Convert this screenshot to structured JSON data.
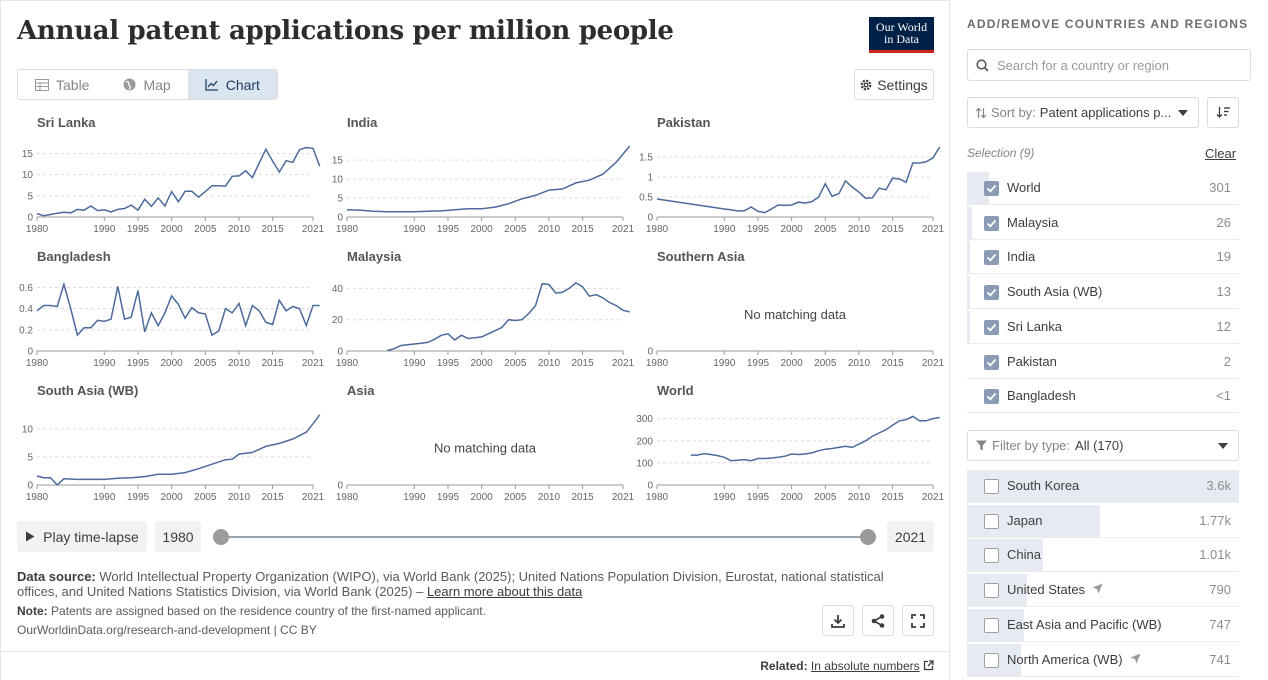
{
  "header": {
    "title": "Annual patent applications per million people",
    "logo_line1": "Our World",
    "logo_line2": "in Data"
  },
  "tabs": [
    {
      "label": "Table",
      "icon": "table-icon"
    },
    {
      "label": "Map",
      "icon": "globe-icon"
    },
    {
      "label": "Chart",
      "icon": "line-chart-icon",
      "active": true
    }
  ],
  "settings_label": "Settings",
  "chart_data": {
    "type": "line",
    "layout": "small-multiples",
    "line_color": "#4c6a9c",
    "x_ticks": [
      "1980",
      "1990",
      "1995",
      "2000",
      "2005",
      "2010",
      "2015",
      "2021"
    ],
    "x_start": 1980,
    "x_end": 2021,
    "no_data_label": "No matching data",
    "panels": [
      {
        "name": "Sri Lanka",
        "ylim": [
          0,
          17
        ],
        "yticks": [
          0,
          5,
          10,
          15
        ],
        "x": [
          1980,
          1981,
          1982,
          1983,
          1984,
          1985,
          1986,
          1987,
          1988,
          1989,
          1990,
          1991,
          1992,
          1993,
          1994,
          1995,
          1996,
          1997,
          1998,
          1999,
          2000,
          2001,
          2002,
          2003,
          2004,
          2005,
          2006,
          2007,
          2008,
          2009,
          2010,
          2011,
          2012,
          2013,
          2014,
          2015,
          2016,
          2017,
          2018,
          2019,
          2020,
          2021,
          2022
        ],
        "y": [
          0.8,
          0.3,
          0.6,
          0.9,
          1.1,
          1.0,
          1.8,
          1.6,
          2.6,
          1.5,
          1.7,
          1.2,
          1.8,
          2.0,
          2.8,
          1.6,
          4.2,
          2.5,
          4.5,
          2.6,
          6.0,
          3.6,
          6.1,
          6.1,
          4.7,
          6.0,
          7.4,
          7.4,
          7.3,
          9.6,
          9.7,
          10.9,
          9.3,
          12.7,
          16.0,
          13.2,
          10.6,
          13.3,
          12.9,
          15.9,
          16.4,
          16.2,
          12.0
        ]
      },
      {
        "name": "India",
        "ylim": [
          0,
          19
        ],
        "yticks": [
          0,
          5,
          10,
          15
        ],
        "x": [
          1980,
          1982,
          1984,
          1986,
          1988,
          1990,
          1992,
          1994,
          1996,
          1998,
          2000,
          2002,
          2004,
          2006,
          2008,
          2010,
          2012,
          2014,
          2016,
          2018,
          2020,
          2022
        ],
        "y": [
          1.9,
          1.8,
          1.5,
          1.4,
          1.4,
          1.4,
          1.5,
          1.6,
          1.9,
          2.2,
          2.2,
          2.6,
          3.5,
          4.8,
          5.7,
          7.1,
          7.4,
          9.0,
          9.7,
          11.3,
          14.5,
          18.7
        ]
      },
      {
        "name": "Pakistan",
        "ylim": [
          0,
          1.8
        ],
        "yticks": [
          0,
          0.5,
          1,
          1.5
        ],
        "x": [
          1980,
          1982,
          1984,
          1986,
          1988,
          1990,
          1991,
          1992,
          1993,
          1994,
          1995,
          1996,
          1997,
          1998,
          1999,
          2000,
          2001,
          2002,
          2003,
          2004,
          2005,
          2006,
          2007,
          2008,
          2009,
          2010,
          2011,
          2012,
          2013,
          2014,
          2015,
          2016,
          2017,
          2018,
          2019,
          2020,
          2021,
          2022
        ],
        "y": [
          0.45,
          0.4,
          0.35,
          0.3,
          0.25,
          0.2,
          0.18,
          0.15,
          0.16,
          0.25,
          0.14,
          0.11,
          0.2,
          0.3,
          0.29,
          0.3,
          0.37,
          0.35,
          0.38,
          0.5,
          0.83,
          0.52,
          0.58,
          0.9,
          0.75,
          0.62,
          0.47,
          0.48,
          0.72,
          0.68,
          0.97,
          0.95,
          0.87,
          1.35,
          1.35,
          1.38,
          1.48,
          1.75
        ]
      },
      {
        "name": "Bangladesh",
        "ylim": [
          0,
          0.68
        ],
        "yticks": [
          0,
          0.2,
          0.4,
          0.6
        ],
        "x": [
          1980,
          1981,
          1982,
          1983,
          1984,
          1985,
          1986,
          1987,
          1988,
          1989,
          1990,
          1991,
          1992,
          1993,
          1994,
          1995,
          1996,
          1997,
          1998,
          1999,
          2000,
          2001,
          2002,
          2003,
          2004,
          2005,
          2006,
          2007,
          2008,
          2009,
          2010,
          2011,
          2012,
          2013,
          2014,
          2015,
          2016,
          2017,
          2018,
          2019,
          2020,
          2021,
          2022
        ],
        "y": [
          0.38,
          0.43,
          0.43,
          0.42,
          0.63,
          0.4,
          0.15,
          0.22,
          0.22,
          0.29,
          0.28,
          0.3,
          0.61,
          0.3,
          0.32,
          0.57,
          0.18,
          0.36,
          0.24,
          0.36,
          0.52,
          0.44,
          0.31,
          0.41,
          0.36,
          0.35,
          0.15,
          0.19,
          0.4,
          0.36,
          0.45,
          0.24,
          0.43,
          0.38,
          0.27,
          0.25,
          0.48,
          0.38,
          0.42,
          0.4,
          0.24,
          0.43,
          0.43
        ]
      },
      {
        "name": "Malaysia",
        "ylim": [
          0,
          46
        ],
        "yticks": [
          0,
          20,
          40
        ],
        "x": [
          1986,
          1987,
          1988,
          1989,
          1990,
          1991,
          1992,
          1993,
          1994,
          1995,
          1996,
          1997,
          1998,
          1999,
          2000,
          2001,
          2002,
          2003,
          2004,
          2005,
          2006,
          2007,
          2008,
          2009,
          2010,
          2011,
          2012,
          2013,
          2014,
          2015,
          2016,
          2017,
          2018,
          2019,
          2020,
          2021,
          2022
        ],
        "y": [
          0.3,
          1.5,
          3.5,
          4.0,
          4.5,
          5.0,
          5.5,
          7.5,
          10.0,
          11.0,
          7.0,
          10.0,
          8.0,
          8.5,
          9.0,
          11.0,
          13.0,
          15.0,
          20.0,
          19.5,
          20.0,
          24.0,
          29.0,
          43.0,
          42.5,
          37.0,
          37.5,
          40.0,
          43.5,
          41.0,
          35.0,
          36.0,
          34.0,
          31.0,
          29.0,
          26.0,
          25.0
        ]
      },
      {
        "name": "Southern Asia",
        "ylim": [
          0,
          1
        ],
        "yticks": [
          0
        ],
        "x": [],
        "y": [],
        "no_data": true
      },
      {
        "name": "South Asia (WB)",
        "ylim": [
          0,
          13
        ],
        "yticks": [
          0,
          5,
          10
        ],
        "x": [
          1980,
          1981,
          1982,
          1983,
          1984,
          1986,
          1988,
          1990,
          1992,
          1994,
          1996,
          1998,
          2000,
          2002,
          2004,
          2006,
          2008,
          2009,
          2010,
          2012,
          2014,
          2016,
          2018,
          2020,
          2021,
          2022
        ],
        "y": [
          1.6,
          1.3,
          1.3,
          0.0,
          1.1,
          1.0,
          1.0,
          1.0,
          1.2,
          1.3,
          1.5,
          1.9,
          1.9,
          2.2,
          2.9,
          3.7,
          4.5,
          4.6,
          5.5,
          5.8,
          6.9,
          7.4,
          8.2,
          9.4,
          10.9,
          12.5
        ]
      },
      {
        "name": "Asia",
        "ylim": [
          0,
          1
        ],
        "yticks": [
          0
        ],
        "x": [],
        "y": [],
        "no_data": true
      },
      {
        "name": "World",
        "ylim": [
          0,
          330
        ],
        "yticks": [
          0,
          100,
          200,
          300
        ],
        "x": [
          1985,
          1986,
          1987,
          1988,
          1989,
          1990,
          1991,
          1992,
          1993,
          1994,
          1995,
          1996,
          1997,
          1998,
          1999,
          2000,
          2001,
          2002,
          2003,
          2004,
          2005,
          2006,
          2007,
          2008,
          2009,
          2010,
          2011,
          2012,
          2013,
          2014,
          2015,
          2016,
          2017,
          2018,
          2019,
          2020,
          2021,
          2022
        ],
        "y": [
          135,
          135,
          142,
          138,
          133,
          125,
          110,
          112,
          115,
          110,
          120,
          120,
          122,
          125,
          130,
          140,
          138,
          140,
          145,
          155,
          162,
          165,
          170,
          175,
          170,
          185,
          200,
          220,
          235,
          250,
          270,
          290,
          295,
          310,
          290,
          290,
          300,
          305
        ]
      }
    ]
  },
  "timeline": {
    "play_label": "Play time-lapse",
    "start_year": "1980",
    "end_year": "2021"
  },
  "footer": {
    "source_label": "Data source:",
    "source_text": "World Intellectual Property Organization (WIPO), via World Bank (2025); United Nations Population Division, Eurostat, national statistical offices, and United Nations Statistics Division, via World Bank (2025) – ",
    "learn_more": "Learn more about this data",
    "note_label": "Note:",
    "note_text": "Patents are assigned based on the residence country of the first-named applicant.",
    "citation": "OurWorldinData.org/research-and-development | CC BY",
    "related_label": "Related:",
    "related_link": "In absolute numbers"
  },
  "sidebar": {
    "title": "ADD/REMOVE COUNTRIES AND REGIONS",
    "search_placeholder": "Search for a country or region",
    "sort_label": "Sort by:",
    "sort_value": "Patent applications p...",
    "selection_label": "Selection (9)",
    "clear_label": "Clear",
    "selected": [
      {
        "name": "World",
        "value": "301",
        "fill": 0.08
      },
      {
        "name": "Malaysia",
        "value": "26",
        "fill": 0.02
      },
      {
        "name": "India",
        "value": "19",
        "fill": 0.01
      },
      {
        "name": "South Asia (WB)",
        "value": "13",
        "fill": 0.01
      },
      {
        "name": "Sri Lanka",
        "value": "12",
        "fill": 0.01
      },
      {
        "name": "Pakistan",
        "value": "2",
        "fill": 0.0
      },
      {
        "name": "Bangladesh",
        "value": "<1",
        "fill": 0.0
      }
    ],
    "filter_label": "Filter by type:",
    "filter_value": "All (170)",
    "available": [
      {
        "name": "South Korea",
        "value": "3.6k",
        "fill": 1.0,
        "icon": ""
      },
      {
        "name": "Japan",
        "value": "1.77k",
        "fill": 0.49,
        "icon": ""
      },
      {
        "name": "China",
        "value": "1.01k",
        "fill": 0.28,
        "icon": ""
      },
      {
        "name": "United States",
        "value": "790",
        "fill": 0.22,
        "icon": "projection-icon"
      },
      {
        "name": "East Asia and Pacific (WB)",
        "value": "747",
        "fill": 0.21,
        "icon": ""
      },
      {
        "name": "North America (WB)",
        "value": "741",
        "fill": 0.2,
        "icon": "projection-icon"
      }
    ]
  }
}
